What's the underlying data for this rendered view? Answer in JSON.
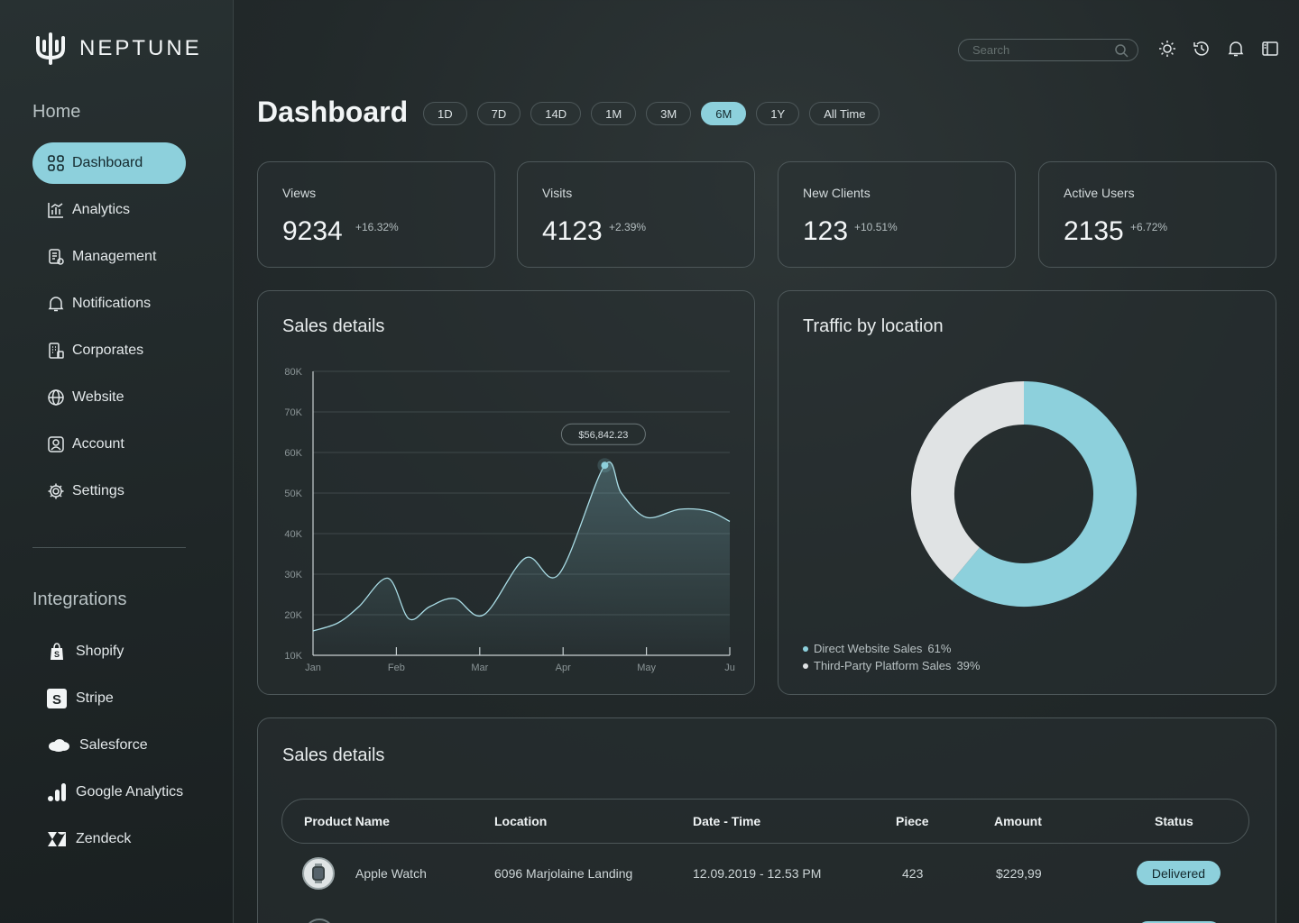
{
  "app": {
    "name": "NEPTUNE"
  },
  "sidebar": {
    "home_title": "Home",
    "items": [
      {
        "label": "Dashboard",
        "icon": "grid-icon",
        "active": true
      },
      {
        "label": "Analytics",
        "icon": "analytics-icon"
      },
      {
        "label": "Management",
        "icon": "management-icon"
      },
      {
        "label": "Notifications",
        "icon": "bell-icon"
      },
      {
        "label": "Corporates",
        "icon": "corporates-icon"
      },
      {
        "label": "Website",
        "icon": "globe-icon"
      },
      {
        "label": "Account",
        "icon": "account-icon"
      },
      {
        "label": "Settings",
        "icon": "gear-icon"
      }
    ],
    "integrations_title": "Integrations",
    "integrations": [
      {
        "label": "Shopify",
        "icon": "shopify-icon"
      },
      {
        "label": "Stripe",
        "icon": "stripe-icon"
      },
      {
        "label": "Salesforce",
        "icon": "salesforce-icon"
      },
      {
        "label": "Google Analytics",
        "icon": "google-analytics-icon"
      },
      {
        "label": "Zendeck",
        "icon": "zendeck-icon"
      }
    ]
  },
  "topbar": {
    "search_placeholder": "Search"
  },
  "header": {
    "title": "Dashboard",
    "ranges": [
      "1D",
      "7D",
      "14D",
      "1M",
      "3M",
      "6M",
      "1Y",
      "All Time"
    ],
    "active_range": "6M"
  },
  "stats": [
    {
      "label": "Views",
      "value": "9234",
      "change": "+16.32%"
    },
    {
      "label": "Visits",
      "value": "4123",
      "change": "+2.39%"
    },
    {
      "label": "New Clients",
      "value": "123",
      "change": "+10.51%"
    },
    {
      "label": "Active Users",
      "value": "2135",
      "change": "+6.72%"
    }
  ],
  "sales_chart": {
    "title": "Sales details",
    "tooltip": "$56,842.23"
  },
  "traffic": {
    "title": "Traffic by location",
    "legend": [
      {
        "label": "Direct Website Sales",
        "percent": "61%",
        "color": "#8dd0dc"
      },
      {
        "label": "Third-Party Platform Sales",
        "percent": "39%",
        "color": "#e0e3e4"
      }
    ]
  },
  "table": {
    "title": "Sales details",
    "headers": [
      "Product Name",
      "Location",
      "Date - Time",
      "Piece",
      "Amount",
      "Status"
    ],
    "rows": [
      {
        "product": "Apple Watch",
        "location": "6096 Marjolaine Landing",
        "datetime": "12.09.2019 - 12.53 PM",
        "piece": "423",
        "amount": "$229,99",
        "status": "Delivered"
      }
    ]
  },
  "chart_data": [
    {
      "type": "area",
      "title": "Sales details",
      "x": [
        "Jan",
        "Feb",
        "Mar",
        "Apr",
        "May",
        "Ju"
      ],
      "x_positions": [
        0,
        1,
        2,
        3,
        4,
        5
      ],
      "series": [
        {
          "name": "Sales",
          "x": [
            0,
            0.3,
            0.55,
            0.9,
            1.15,
            1.4,
            1.7,
            2.05,
            2.55,
            2.95,
            3.5,
            3.7,
            4.0,
            4.4,
            4.75,
            5.0
          ],
          "values": [
            16000,
            18000,
            22000,
            29000,
            19000,
            22000,
            24000,
            20000,
            34000,
            30000,
            56842.23,
            50000,
            44000,
            46000,
            45500,
            43000
          ]
        }
      ],
      "highlight": {
        "x": 3.5,
        "value": 56842.23,
        "label": "$56,842.23"
      },
      "yticks": [
        "80K",
        "70K",
        "60K",
        "50K",
        "40K",
        "30K",
        "20K",
        "10K"
      ],
      "ylim": [
        10000,
        80000
      ]
    },
    {
      "type": "pie",
      "title": "Traffic by location",
      "categories": [
        "Direct Website Sales",
        "Third-Party Platform Sales"
      ],
      "values": [
        61,
        39
      ]
    }
  ]
}
